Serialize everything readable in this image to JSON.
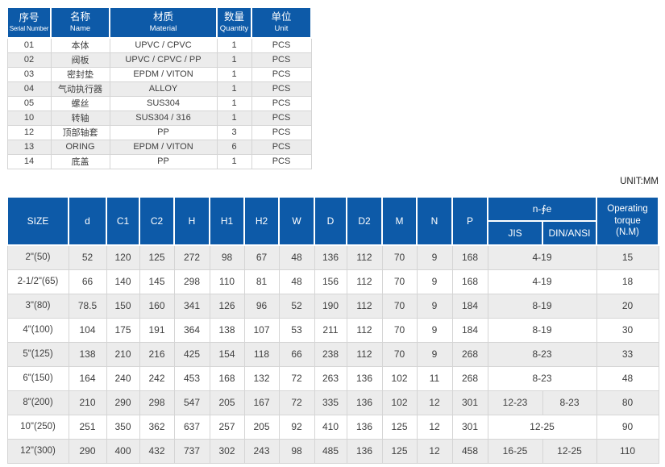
{
  "page": {
    "unit_label": "UNIT:MM"
  },
  "colors": {
    "header_blue": "#0d5aa8",
    "row_alt": "#ececec",
    "grid": "#d5d5d5",
    "body_text": "#3f3f3f"
  },
  "parts_table": {
    "headers": [
      {
        "zh": "序号",
        "en": "Serial Number"
      },
      {
        "zh": "名称",
        "en": "Name"
      },
      {
        "zh": "材质",
        "en": "Material"
      },
      {
        "zh": "数量",
        "en": "Quantity"
      },
      {
        "zh": "单位",
        "en": "Unit"
      }
    ],
    "rows": [
      [
        "01",
        "本体",
        "UPVC / CPVC",
        "1",
        "PCS"
      ],
      [
        "02",
        "阀板",
        "UPVC / CPVC / PP",
        "1",
        "PCS"
      ],
      [
        "03",
        "密封垫",
        "EPDM / VITON",
        "1",
        "PCS"
      ],
      [
        "04",
        "气动执行器",
        "ALLOY",
        "1",
        "PCS"
      ],
      [
        "05",
        "螺丝",
        "SUS304",
        "1",
        "PCS"
      ],
      [
        "10",
        "转轴",
        "SUS304 / 316",
        "1",
        "PCS"
      ],
      [
        "12",
        "顶部轴套",
        "PP",
        "3",
        "PCS"
      ],
      [
        "13",
        "ORING",
        "EPDM / VITON",
        "6",
        "PCS"
      ],
      [
        "14",
        "底盖",
        "PP",
        "1",
        "PCS"
      ]
    ]
  },
  "dim_table": {
    "col_headers": [
      "SIZE",
      "d",
      "C1",
      "C2",
      "H",
      "H1",
      "H2",
      "W",
      "D",
      "D2",
      "M",
      "N",
      "P"
    ],
    "bolt_group": {
      "label": "n-∮e",
      "sub": [
        "JIS",
        "DIN/ANSI"
      ]
    },
    "torque_header_lines": [
      "Operating",
      "torque",
      "(N.M)"
    ],
    "rows": [
      {
        "size": "2\"(50)",
        "values": [
          "52",
          "120",
          "125",
          "272",
          "98",
          "67",
          "48",
          "136",
          "112",
          "70",
          "9",
          "168"
        ],
        "jis": "4-19",
        "din": null,
        "torque": "15"
      },
      {
        "size": "2-1/2\"(65)",
        "values": [
          "66",
          "140",
          "145",
          "298",
          "110",
          "81",
          "48",
          "156",
          "112",
          "70",
          "9",
          "168"
        ],
        "jis": "4-19",
        "din": null,
        "torque": "18"
      },
      {
        "size": "3\"(80)",
        "values": [
          "78.5",
          "150",
          "160",
          "341",
          "126",
          "96",
          "52",
          "190",
          "112",
          "70",
          "9",
          "184"
        ],
        "jis": "8-19",
        "din": null,
        "torque": "20"
      },
      {
        "size": "4\"(100)",
        "values": [
          "104",
          "175",
          "191",
          "364",
          "138",
          "107",
          "53",
          "211",
          "112",
          "70",
          "9",
          "184"
        ],
        "jis": "8-19",
        "din": null,
        "torque": "30"
      },
      {
        "size": "5\"(125)",
        "values": [
          "138",
          "210",
          "216",
          "425",
          "154",
          "118",
          "66",
          "238",
          "112",
          "70",
          "9",
          "268"
        ],
        "jis": "8-23",
        "din": null,
        "torque": "33"
      },
      {
        "size": "6\"(150)",
        "values": [
          "164",
          "240",
          "242",
          "453",
          "168",
          "132",
          "72",
          "263",
          "136",
          "102",
          "11",
          "268"
        ],
        "jis": "8-23",
        "din": null,
        "torque": "48"
      },
      {
        "size": "8\"(200)",
        "values": [
          "210",
          "290",
          "298",
          "547",
          "205",
          "167",
          "72",
          "335",
          "136",
          "102",
          "12",
          "301"
        ],
        "jis": "12-23",
        "din": "8-23",
        "torque": "80"
      },
      {
        "size": "10\"(250)",
        "values": [
          "251",
          "350",
          "362",
          "637",
          "257",
          "205",
          "92",
          "410",
          "136",
          "125",
          "12",
          "301"
        ],
        "jis": "12-25",
        "din": null,
        "torque": "90"
      },
      {
        "size": "12\"(300)",
        "values": [
          "290",
          "400",
          "432",
          "737",
          "302",
          "243",
          "98",
          "485",
          "136",
          "125",
          "12",
          "458"
        ],
        "jis": "16-25",
        "din": "12-25",
        "torque": "110"
      }
    ]
  }
}
